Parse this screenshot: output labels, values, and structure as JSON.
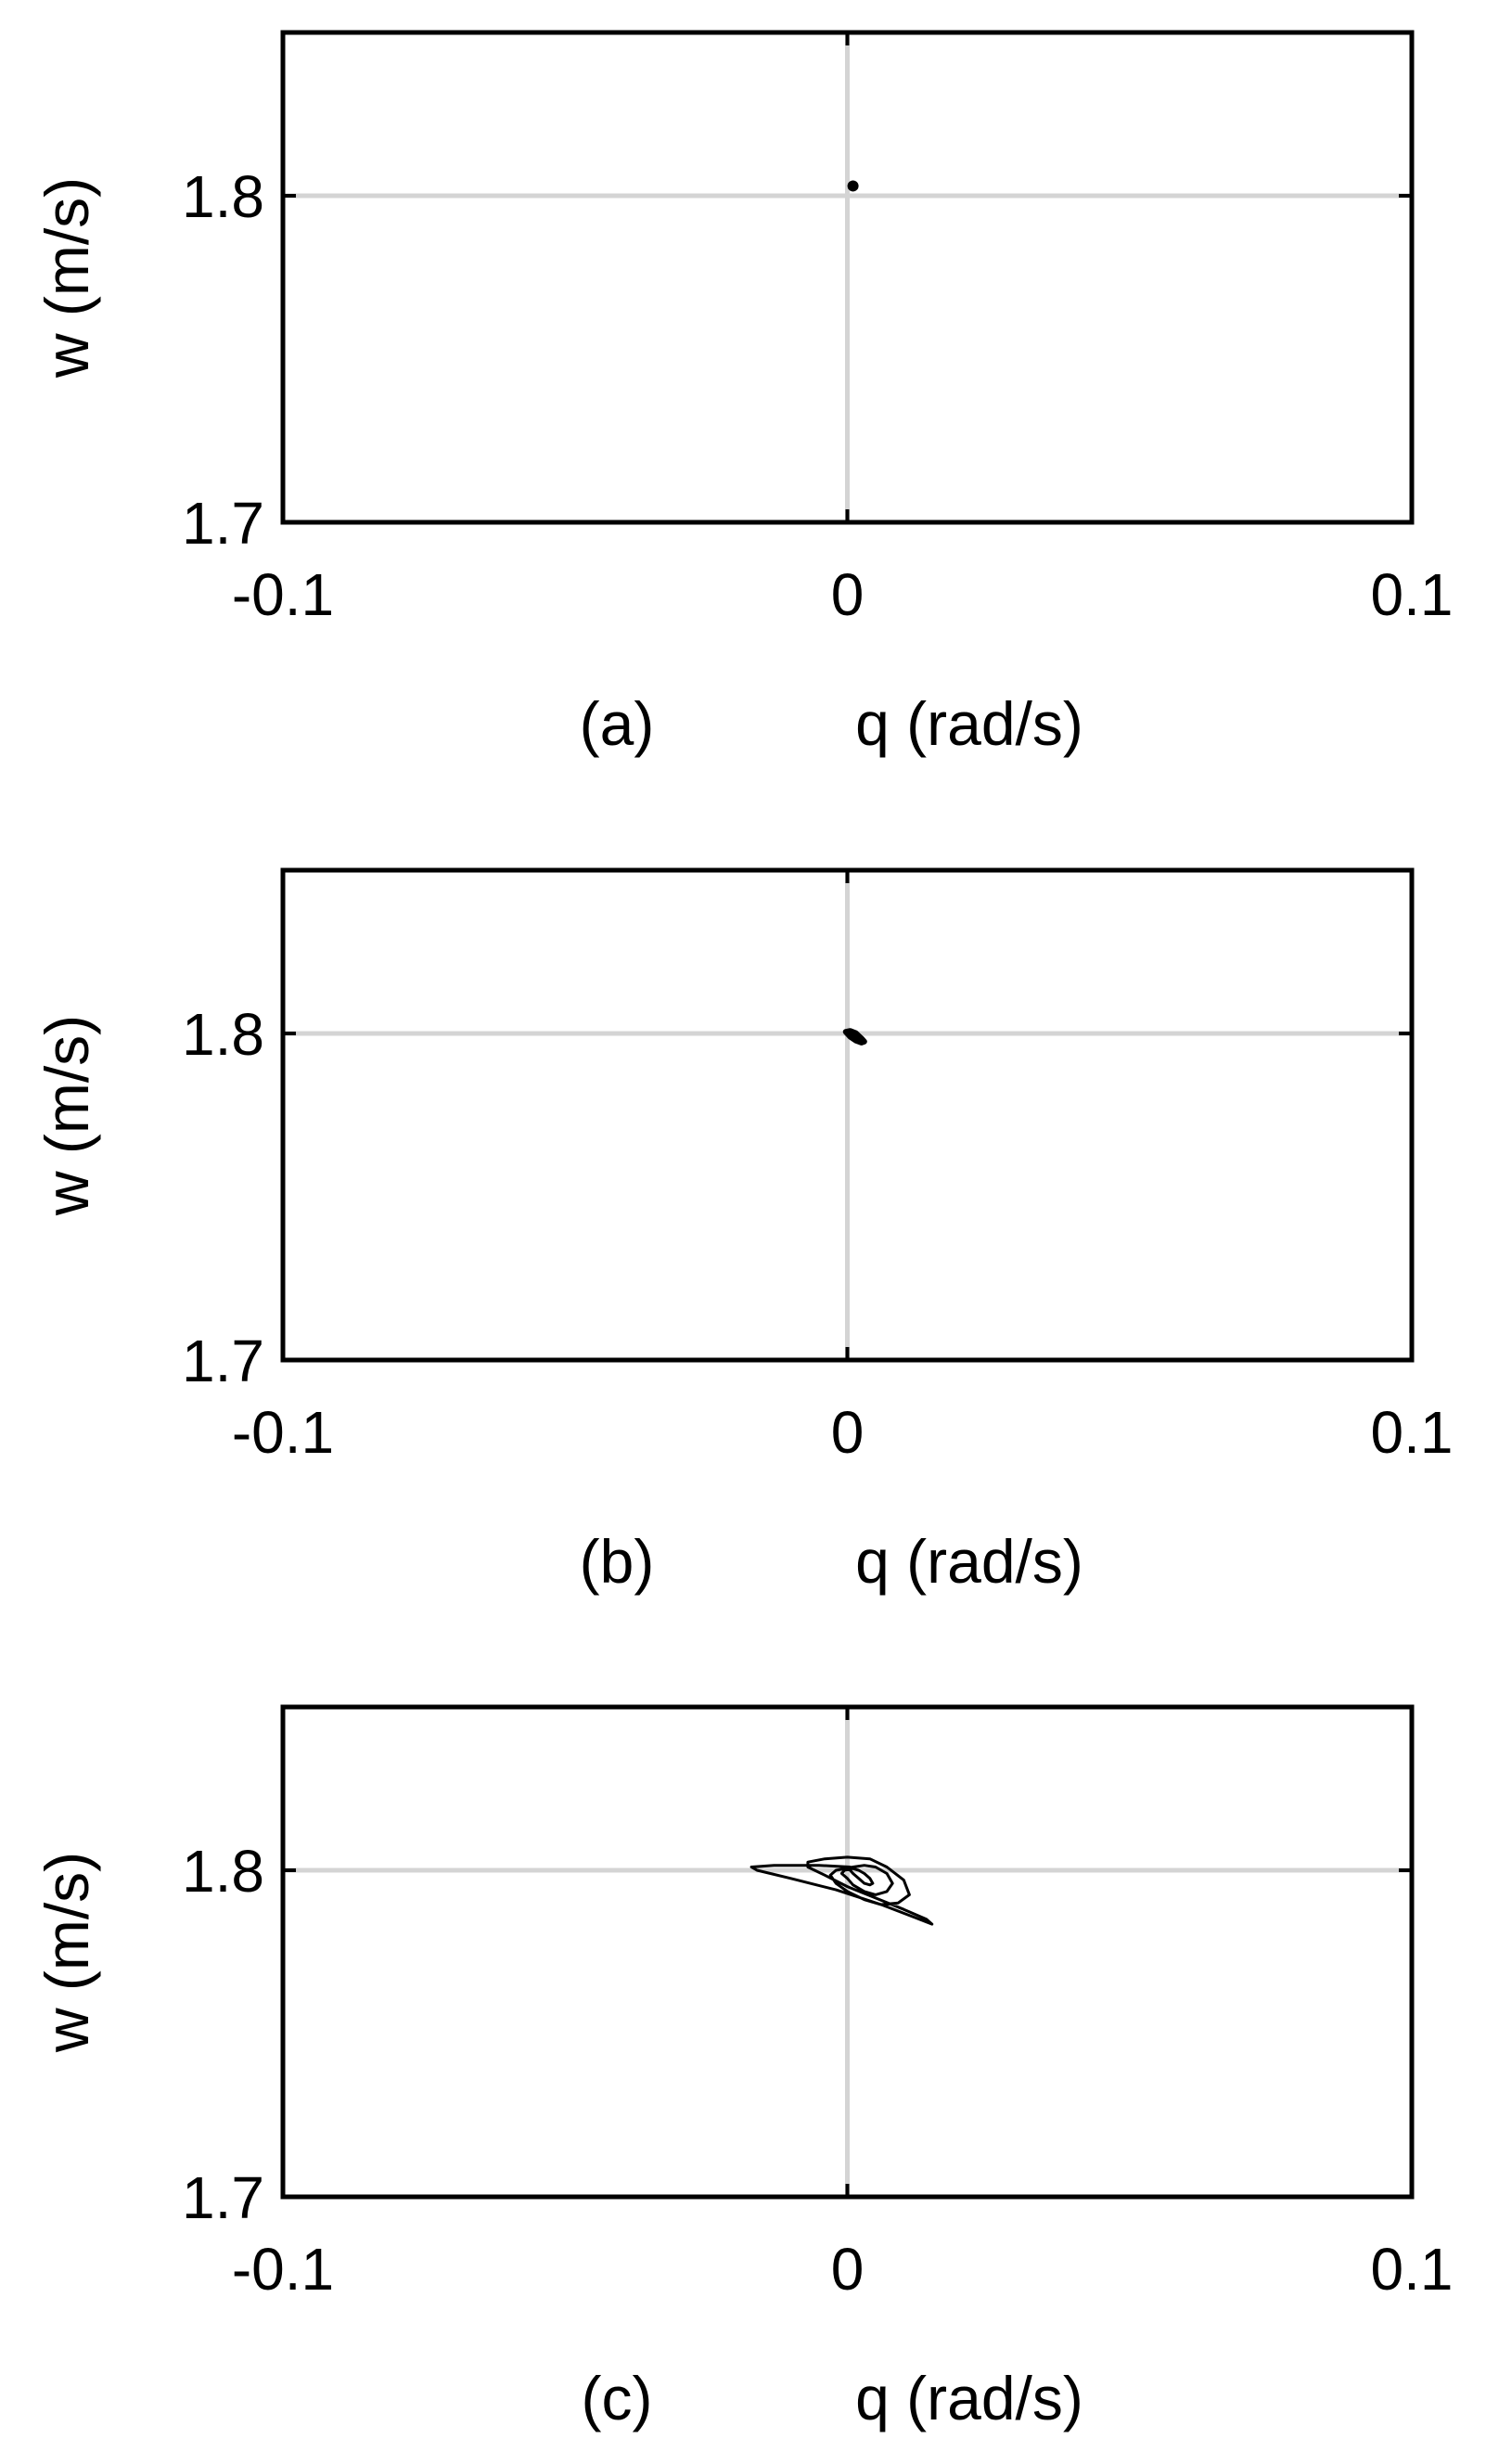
{
  "chart_data": [
    {
      "type": "line",
      "panel_label": "(a)",
      "xlabel": "q (rad/s)",
      "ylabel": "w (m/s)",
      "xlim": [
        -0.1,
        0.1
      ],
      "ylim": [
        1.7,
        1.85
      ],
      "xticks": [
        -0.1,
        0,
        0.1
      ],
      "xtick_labels": [
        "-0.1",
        "0",
        "0.1"
      ],
      "yticks": [
        1.7,
        1.8
      ],
      "ytick_labels": [
        "1.7",
        "1.8"
      ],
      "grid": "zero lines only",
      "series": [
        {
          "x": [
            0.001
          ],
          "y": [
            1.803
          ],
          "marker": "dot"
        }
      ]
    },
    {
      "type": "line",
      "panel_label": "(b)",
      "xlabel": "q (rad/s)",
      "ylabel": "w (m/s)",
      "xlim": [
        -0.1,
        0.1
      ],
      "ylim": [
        1.7,
        1.85
      ],
      "xticks": [
        -0.1,
        0,
        0.1
      ],
      "xtick_labels": [
        "-0.1",
        "0",
        "0.1"
      ],
      "yticks": [
        1.7,
        1.8
      ],
      "ytick_labels": [
        "1.7",
        "1.8"
      ],
      "grid": "zero lines only",
      "series": [
        {
          "x": [
            -0.0003,
            0.0005,
            0.0015,
            0.0025,
            0.003,
            0.0025,
            0.0015,
            0.0005,
            -0.0003
          ],
          "y": [
            1.8005,
            1.8008,
            1.8001,
            1.7985,
            1.7975,
            1.7972,
            1.7978,
            1.799,
            1.8005
          ],
          "marker": "filled-loop"
        }
      ]
    },
    {
      "type": "line",
      "panel_label": "(c)",
      "xlabel": "q (rad/s)",
      "ylabel": "w (m/s)",
      "xlim": [
        -0.1,
        0.1
      ],
      "ylim": [
        1.7,
        1.85
      ],
      "xticks": [
        -0.1,
        0,
        0.1
      ],
      "xtick_labels": [
        "-0.1",
        "0",
        "0.1"
      ],
      "yticks": [
        1.7,
        1.8
      ],
      "ytick_labels": [
        "1.7",
        "1.8"
      ],
      "grid": "zero lines only",
      "series": [
        {
          "x": [
            0.0005,
            -0.005,
            -0.013,
            -0.017,
            -0.016,
            -0.01,
            -0.002,
            0.006,
            0.012,
            0.015,
            0.014,
            0.01,
            0.005,
            0.0,
            -0.004,
            -0.007,
            -0.007,
            -0.004,
            0.0,
            0.004,
            0.007,
            0.01,
            0.011,
            0.009,
            0.006,
            0.003,
            0.0,
            -0.002,
            -0.003,
            -0.002,
            0.001,
            0.003,
            0.005,
            0.007,
            0.008,
            0.007,
            0.005,
            0.003,
            0.001,
            0.0,
            -0.001,
            -0.0005,
            0.001,
            0.002,
            0.003,
            0.004,
            0.0045,
            0.004,
            0.003,
            0.002,
            0.001,
            0.0005
          ],
          "y": [
            1.801,
            1.8015,
            1.8015,
            1.801,
            1.8,
            1.7975,
            1.794,
            1.7895,
            1.7855,
            1.7835,
            1.785,
            1.788,
            1.7915,
            1.795,
            1.7985,
            1.801,
            1.8025,
            1.8035,
            1.804,
            1.8035,
            1.801,
            1.797,
            1.7925,
            1.79,
            1.7895,
            1.791,
            1.7935,
            1.796,
            1.7985,
            1.8,
            1.801,
            1.8015,
            1.801,
            1.799,
            1.796,
            1.7935,
            1.7925,
            1.7935,
            1.7955,
            1.7975,
            1.799,
            1.8,
            1.8005,
            1.8,
            1.799,
            1.7975,
            1.796,
            1.7955,
            1.796,
            1.7975,
            1.799,
            1.8
          ],
          "marker": "line"
        }
      ]
    }
  ]
}
